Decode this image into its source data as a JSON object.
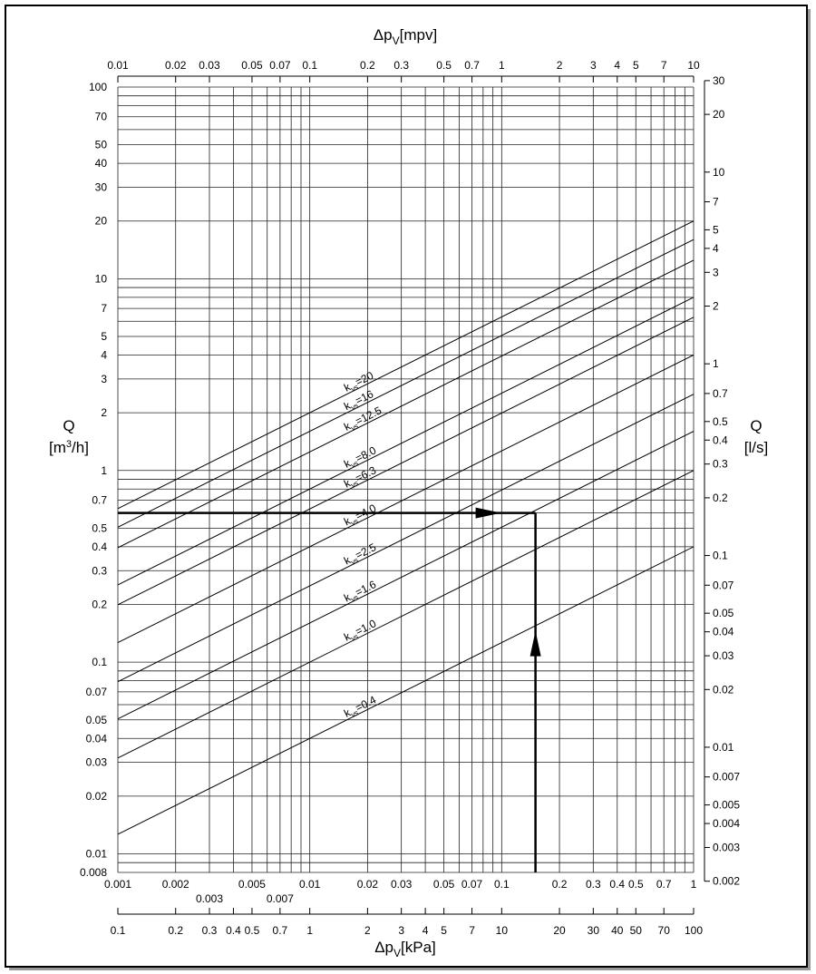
{
  "chart_data": {
    "type": "line",
    "kvs_symbol": "k",
    "kvs_subscript": "vs",
    "series": [
      {
        "name": "=20",
        "kvs": 20
      },
      {
        "name": "=16",
        "kvs": 16
      },
      {
        "name": "=12.5",
        "kvs": 12.5
      },
      {
        "name": "=8.0",
        "kvs": 8
      },
      {
        "name": "=6.3",
        "kvs": 6.3
      },
      {
        "name": "=4.0",
        "kvs": 4
      },
      {
        "name": "=2.5",
        "kvs": 2.5
      },
      {
        "name": "=1.6",
        "kvs": 1.6
      },
      {
        "name": "=1.0",
        "kvs": 1
      },
      {
        "name": "=0.4",
        "kvs": 0.4
      }
    ],
    "color": "#000000",
    "xlim": [
      0.001,
      1
    ],
    "xticks": [
      0.001,
      0.002,
      0.003,
      0.005,
      0.007,
      0.01,
      0.02,
      0.03,
      0.05,
      0.07,
      0.1,
      0.2,
      0.3,
      0.4,
      0.5,
      0.7,
      1
    ],
    "xgrid": [
      0.001,
      0.002,
      0.003,
      0.004,
      0.005,
      0.006,
      0.007,
      0.008,
      0.009,
      0.01,
      0.02,
      0.03,
      0.04,
      0.05,
      0.06,
      0.07,
      0.08,
      0.09,
      0.1,
      0.2,
      0.3,
      0.4,
      0.5,
      0.6,
      0.7,
      0.8,
      0.9,
      1
    ],
    "x2lim": [
      0.01,
      10
    ],
    "x2ticks": [
      0.01,
      0.02,
      0.03,
      0.05,
      0.07,
      0.1,
      0.2,
      0.3,
      0.5,
      0.7,
      1,
      2,
      3,
      4,
      5,
      7,
      10
    ],
    "x2label": {
      "symbol": "Δp",
      "sub": "V",
      "unit": "[mpv]"
    },
    "x3lim": [
      0.1,
      100
    ],
    "x3ticks": [
      0.1,
      0.2,
      0.3,
      0.4,
      0.5,
      0.7,
      1,
      2,
      3,
      4,
      5,
      7,
      10,
      20,
      30,
      40,
      50,
      70,
      100
    ],
    "x3label": {
      "symbol": "Δp",
      "sub": "V",
      "unit": "[kPa]"
    },
    "ylim": [
      0.008,
      100
    ],
    "yticks": [
      100,
      70,
      50,
      40,
      30,
      20,
      10,
      7,
      5,
      4,
      3,
      2,
      1,
      0.7,
      0.5,
      0.4,
      0.3,
      0.2,
      0.1,
      0.07,
      0.05,
      0.04,
      0.03,
      0.02,
      0.01,
      0.008
    ],
    "ygrid": [
      0.008,
      0.009,
      0.01,
      0.02,
      0.03,
      0.04,
      0.05,
      0.06,
      0.07,
      0.08,
      0.09,
      0.1,
      0.2,
      0.3,
      0.4,
      0.5,
      0.6,
      0.7,
      0.8,
      0.9,
      1,
      2,
      3,
      4,
      5,
      6,
      7,
      8,
      9,
      10,
      20,
      30,
      40,
      50,
      60,
      70,
      80,
      90,
      100
    ],
    "ylabel": {
      "symbol": "Q",
      "unit_pre": "[m",
      "sup": "3",
      "unit_post": "/h]"
    },
    "y2lim": [
      0.002,
      30
    ],
    "y2ticks": [
      30,
      20,
      10,
      7,
      5,
      4,
      3,
      2,
      1,
      0.7,
      0.5,
      0.4,
      0.3,
      0.2,
      0.1,
      0.07,
      0.05,
      0.04,
      0.03,
      0.02,
      0.01,
      0.007,
      0.005,
      0.004,
      0.003,
      0.002
    ],
    "y2label": {
      "symbol": "Q",
      "unit": "[l/s]"
    },
    "example": {
      "dp": 0.15,
      "q": 0.6
    }
  }
}
